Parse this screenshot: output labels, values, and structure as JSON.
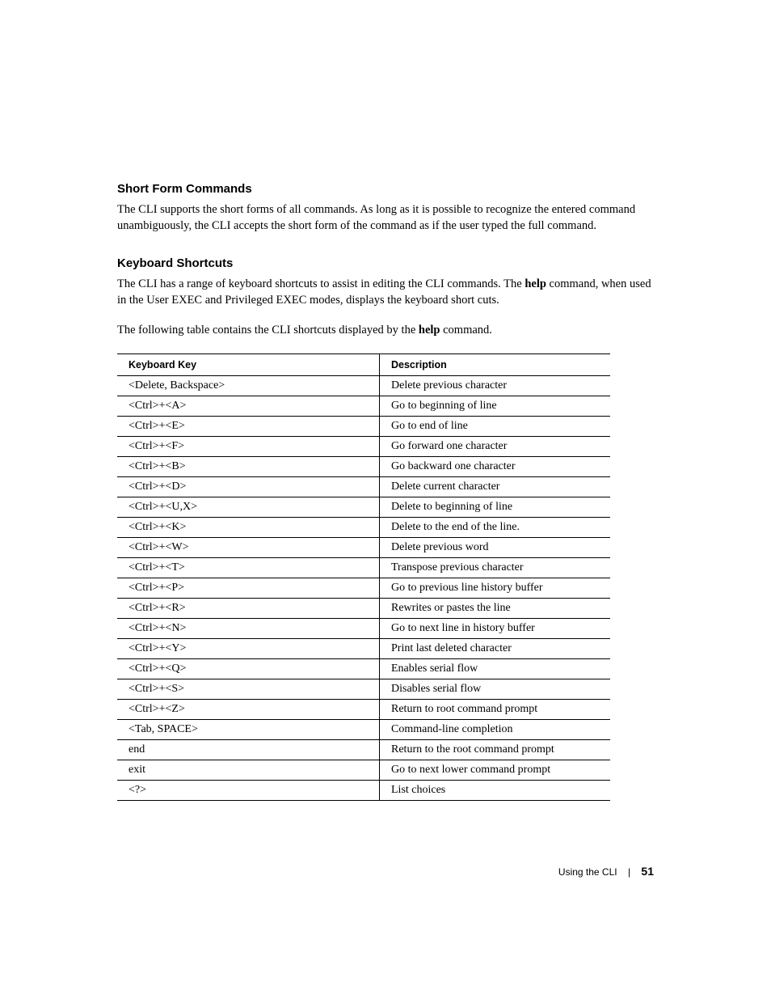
{
  "section1": {
    "heading": "Short Form Commands",
    "para": "The CLI supports the short forms of all commands. As long as it is possible to recognize the entered command unambiguously, the CLI accepts the short form of the command as if the user typed the full command."
  },
  "section2": {
    "heading": "Keyboard Shortcuts",
    "para1_pre": "The CLI has a range of keyboard shortcuts to assist in editing the CLI commands. The ",
    "para1_bold": "help",
    "para1_post": " command, when used in the User EXEC and Privileged EXEC modes, displays the keyboard short cuts.",
    "para2_pre": "The following table contains the CLI shortcuts displayed by the ",
    "para2_bold": "help",
    "para2_post": " command."
  },
  "table": {
    "headers": {
      "key": "Keyboard Key",
      "desc": "Description"
    },
    "rows": [
      {
        "key": "<Delete, Backspace>",
        "desc": "Delete previous character"
      },
      {
        "key": "<Ctrl>+<A>",
        "desc": "Go to beginning of line"
      },
      {
        "key": "<Ctrl>+<E>",
        "desc": "Go to end of line"
      },
      {
        "key": "<Ctrl>+<F>",
        "desc": "Go forward one character"
      },
      {
        "key": "<Ctrl>+<B>",
        "desc": "Go backward one character"
      },
      {
        "key": "<Ctrl>+<D>",
        "desc": "Delete current character"
      },
      {
        "key": "<Ctrl>+<U,X>",
        "desc": "Delete to beginning of line"
      },
      {
        "key": "<Ctrl>+<K>",
        "desc": "Delete to the end of the line."
      },
      {
        "key": "<Ctrl>+<W>",
        "desc": "Delete previous word"
      },
      {
        "key": "<Ctrl>+<T>",
        "desc": "Transpose previous character"
      },
      {
        "key": "<Ctrl>+<P>",
        "desc": "Go to previous line history buffer"
      },
      {
        "key": "<Ctrl>+<R>",
        "desc": "Rewrites or pastes the line"
      },
      {
        "key": "<Ctrl>+<N>",
        "desc": "Go to next line in history buffer"
      },
      {
        "key": "<Ctrl>+<Y>",
        "desc": "Print last deleted character"
      },
      {
        "key": "<Ctrl>+<Q>",
        "desc": "Enables serial flow"
      },
      {
        "key": "<Ctrl>+<S>",
        "desc": "Disables serial flow"
      },
      {
        "key": "<Ctrl>+<Z>",
        "desc": "Return to root command prompt"
      },
      {
        "key": "<Tab, SPACE>",
        "desc": "Command-line completion"
      },
      {
        "key": "end",
        "desc": "Return to the root command prompt"
      },
      {
        "key": "exit",
        "desc": "Go to next lower command prompt"
      },
      {
        "key": "<?>",
        "desc": "List choices"
      }
    ]
  },
  "footer": {
    "section": "Using the CLI",
    "page": "51"
  }
}
